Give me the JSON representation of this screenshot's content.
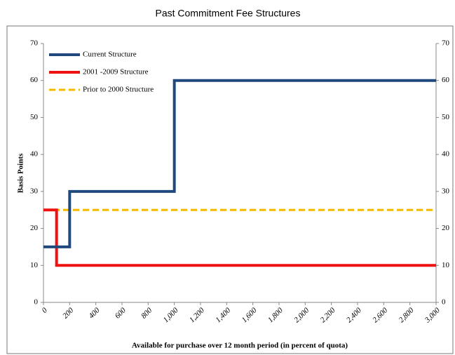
{
  "chart_data": {
    "type": "line",
    "title": "Past Commitment Fee Structures",
    "x_label": "Available for purchase over 12 month period (in percent of quota)",
    "y_label": "Basis Points",
    "xlim": [
      0,
      3000
    ],
    "xticks": [
      0,
      200,
      400,
      600,
      800,
      {
        "value": 1000,
        "label": "1,000"
      },
      {
        "value": 1200,
        "label": "1,200"
      },
      {
        "value": 1400,
        "label": "1,400"
      },
      {
        "value": 1600,
        "label": "1,600"
      },
      {
        "value": 1800,
        "label": "1,800"
      },
      {
        "value": 2000,
        "label": "2,000"
      },
      {
        "value": 2200,
        "label": "2,200"
      },
      {
        "value": 2400,
        "label": "2,400"
      },
      {
        "value": 2600,
        "label": "2,600"
      },
      {
        "value": 2800,
        "label": "2,800"
      },
      {
        "value": 3000,
        "label": "3,000"
      }
    ],
    "ylim": [
      0,
      70
    ],
    "yticks": [
      0,
      10,
      20,
      30,
      40,
      50,
      60,
      70
    ],
    "y2lim": [
      0,
      70
    ],
    "y2ticks": [
      0,
      10,
      20,
      30,
      40,
      50,
      60,
      70
    ],
    "legend": "upper left",
    "series": [
      {
        "name": "Current Structure",
        "color": "#1f497d",
        "style": "solid",
        "x": [
          0,
          200,
          200,
          1000,
          1000,
          3000
        ],
        "values": [
          15,
          15,
          30,
          30,
          60,
          60
        ]
      },
      {
        "name": "2001 -2009 Structure",
        "color": "#ee1111",
        "style": "solid",
        "x": [
          0,
          100,
          100,
          3000
        ],
        "values": [
          25,
          25,
          10,
          10
        ]
      },
      {
        "name": "Prior to 2000 Structure",
        "color": "#f5b800",
        "style": "dashed",
        "x": [
          0,
          3000
        ],
        "values": [
          25,
          25
        ]
      }
    ]
  }
}
